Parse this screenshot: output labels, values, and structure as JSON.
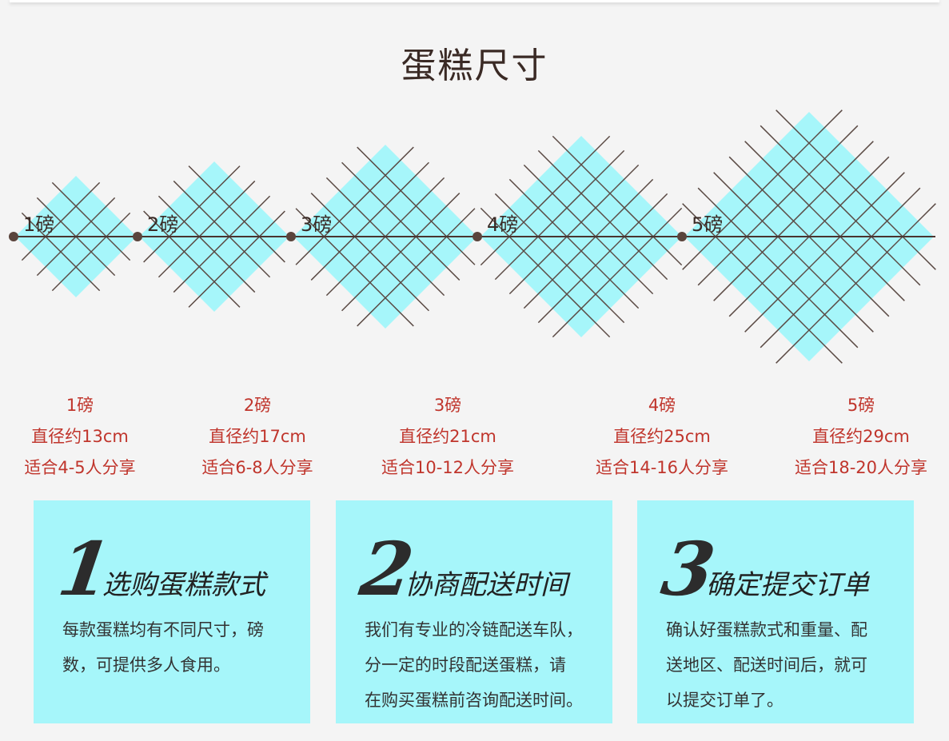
{
  "title": "蛋糕尺寸",
  "colors": {
    "diamond": "#a6f6fa",
    "grid": "#5a4a44",
    "label": "#c0352c",
    "box": "#a6f6fa"
  },
  "sizes": [
    {
      "tag": "1磅",
      "weight": "1磅",
      "diameter": "直径约13cm",
      "serves": "适合4-5人分享"
    },
    {
      "tag": "2磅",
      "weight": "2磅",
      "diameter": "直径约17cm",
      "serves": "适合6-8人分享"
    },
    {
      "tag": "3磅",
      "weight": "3磅",
      "diameter": "直径约21cm",
      "serves": "适合10-12人分享"
    },
    {
      "tag": "4磅",
      "weight": "4磅",
      "diameter": "直径约25cm",
      "serves": "适合14-16人分享"
    },
    {
      "tag": "5磅",
      "weight": "5磅",
      "diameter": "直径约29cm",
      "serves": "适合18-20人分享"
    }
  ],
  "steps": [
    {
      "number": "1",
      "title": "选购蛋糕款式",
      "lines": [
        "每款蛋糕均有不同尺寸，磅",
        "数，可提供多人食用。"
      ]
    },
    {
      "number": "2",
      "title": "协商配送时间",
      "lines": [
        "我们有专业的冷链配送车队，",
        "分一定的时段配送蛋糕，请",
        "在购买蛋糕前咨询配送时间。"
      ]
    },
    {
      "number": "3",
      "title": "确定提交订单",
      "lines": [
        "确认好蛋糕款式和重量、配",
        "送地区、配送时间后，就可",
        "以提交订单了。"
      ]
    }
  ]
}
